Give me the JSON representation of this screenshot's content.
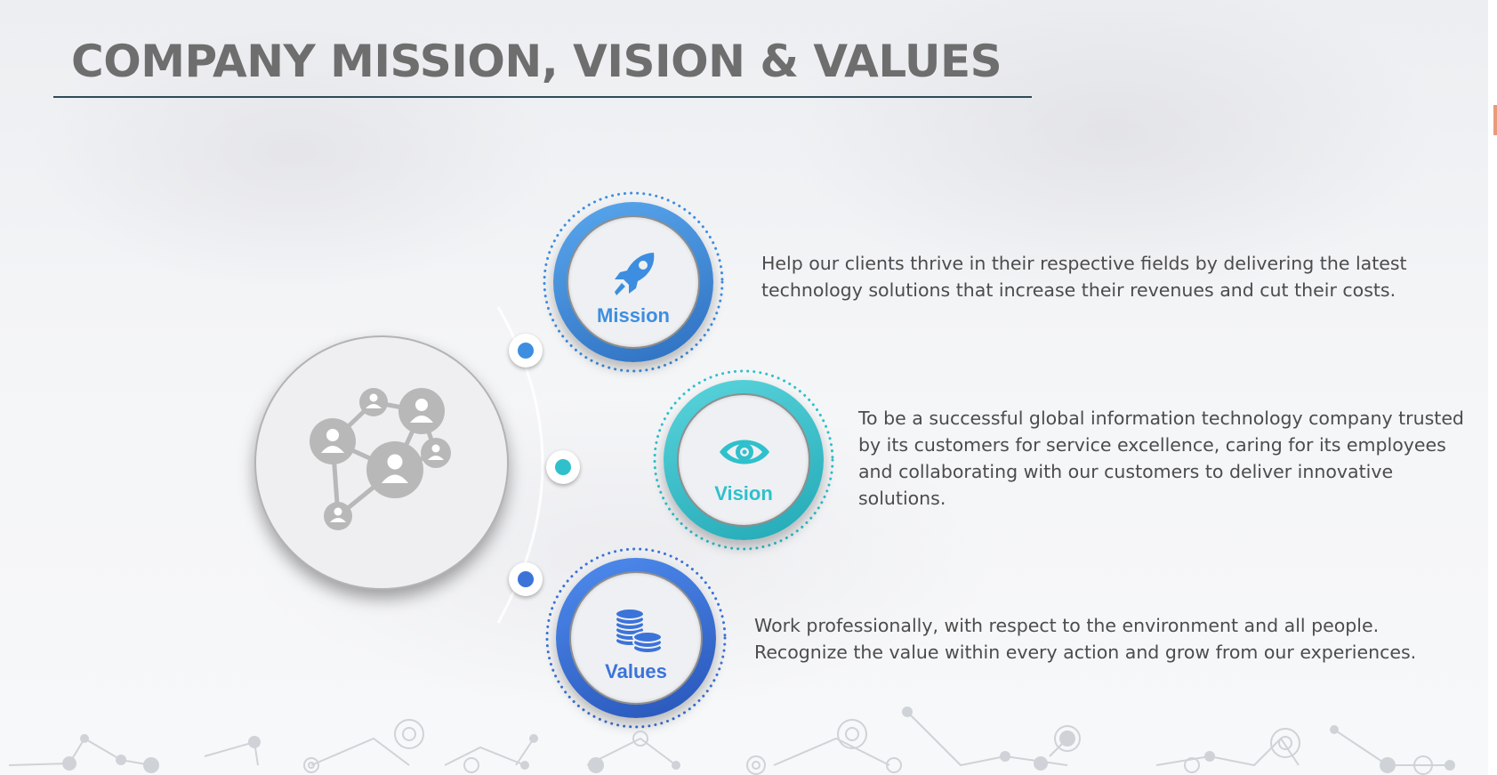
{
  "slide": {
    "title": "COMPANY MISSION, VISION & VALUES",
    "hub_icon": "network-people-icon"
  },
  "items": [
    {
      "label": "Mission",
      "icon": "rocket-icon",
      "color": "#3d8ee0",
      "description": "Help our clients thrive in their respective fields by delivering the latest technology solutions that increase their revenues and cut their costs."
    },
    {
      "label": "Vision",
      "icon": "eye-icon",
      "color": "#2fc0cc",
      "description": "To be a successful global information technology company trusted by its customers for service excellence, caring for its employees and collaborating with our customers to deliver innovative solutions."
    },
    {
      "label": "Values",
      "icon": "coins-icon",
      "color": "#3b73d9",
      "description": "Work professionally, with respect to the environment and all people. Recognize the value within every action and grow from our experiences."
    }
  ],
  "decor": {
    "bottom_pattern": "molecule-network-pattern"
  }
}
